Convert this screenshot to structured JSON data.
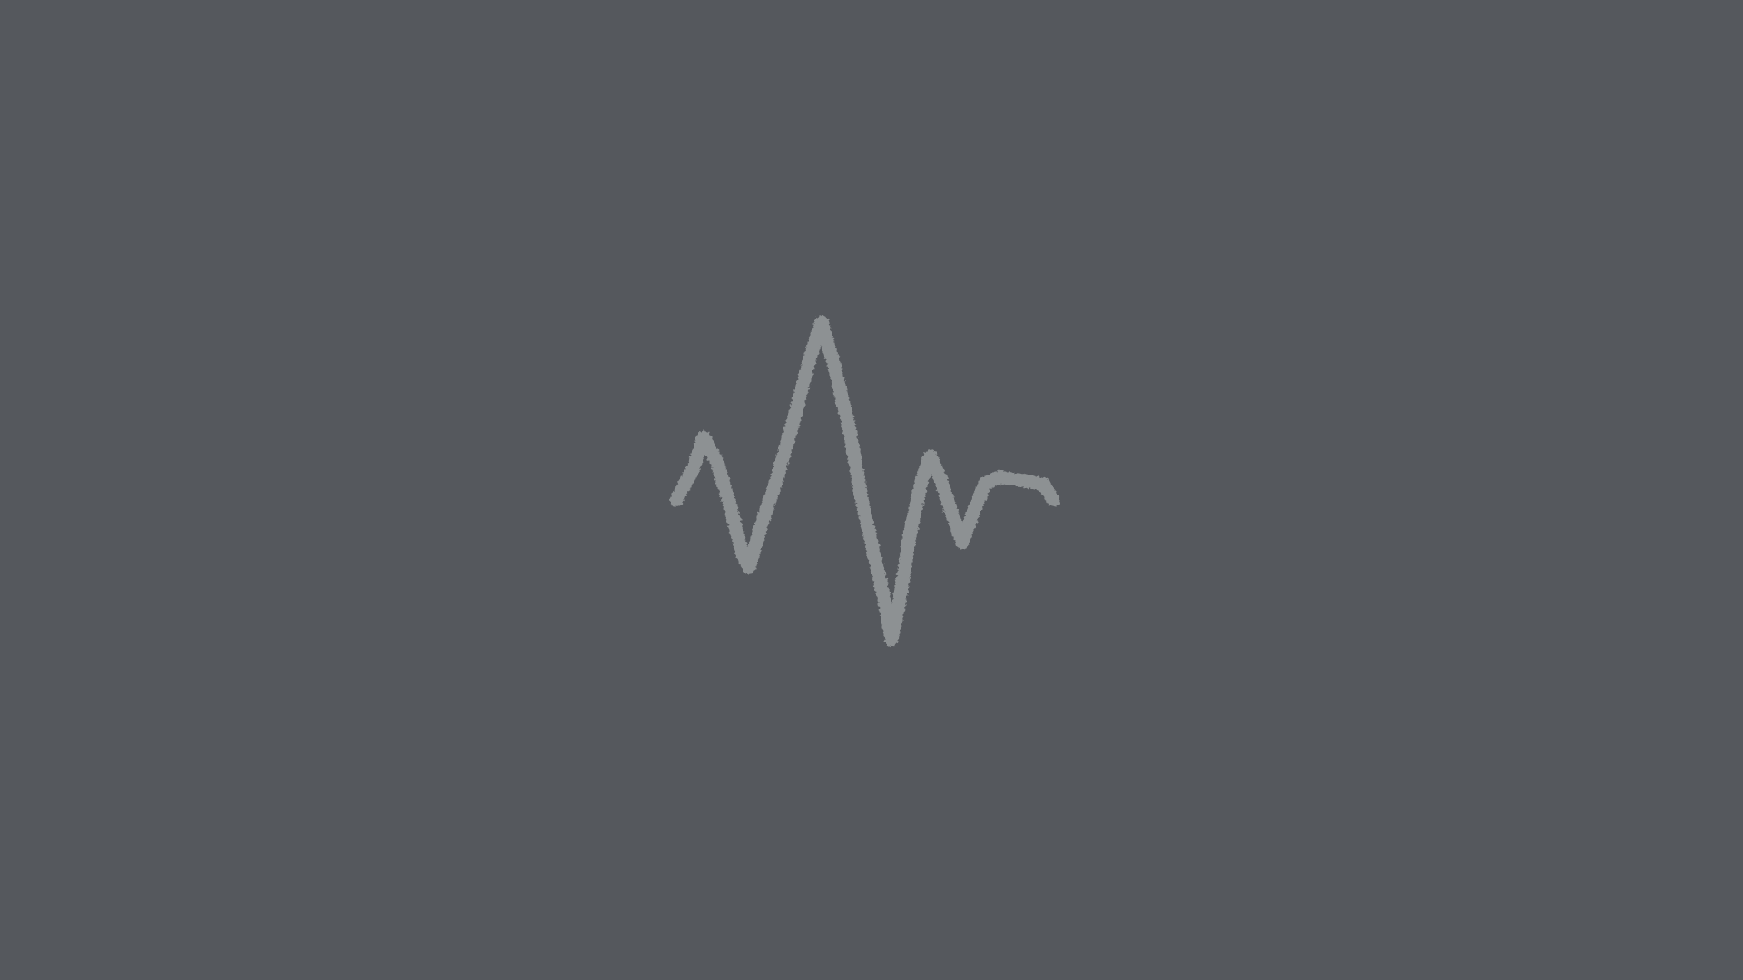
{
  "theme": {
    "background": "#55585d",
    "line_color": "#8d9193"
  }
}
